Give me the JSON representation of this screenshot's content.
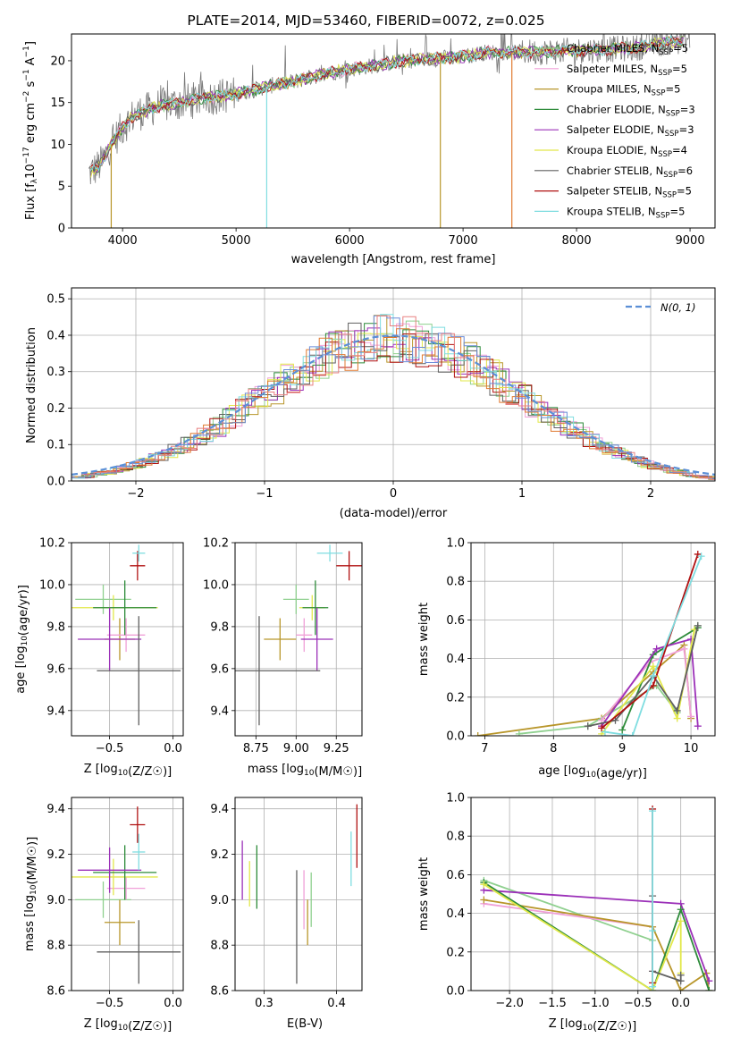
{
  "figure_title": "PLATE=2014, MJD=53460, FIBERID=0072, z=0.025",
  "colors": {
    "Chabrier MILES": "#8fd08f",
    "Salpeter MILES": "#f0a0d8",
    "Kroupa MILES": "#b8962a",
    "Chabrier ELODIE": "#2e8b3a",
    "Salpeter ELODIE": "#9b30b8",
    "Kroupa ELODIE": "#e2e84a",
    "Chabrier STELIB": "#606060",
    "Salpeter STELIB": "#b01010",
    "Kroupa STELIB": "#7fdde0",
    "model_orange": "#e07a30",
    "model_blue": "#6a8cd8",
    "model_pink": "#e88080",
    "gauss": "#5b8fd6"
  },
  "chart_data": [
    {
      "type": "line",
      "title": "PLATE=2014, MJD=53460, FIBERID=0072, z=0.025",
      "xlabel": "wavelength [Angstrom, rest frame]",
      "ylabel": "Flux [f_λ 10^-17 erg cm^-2 s^-1 A^-1]",
      "xlim": [
        3550,
        9220
      ],
      "ylim": [
        0,
        23.2
      ],
      "xticks": [
        4000,
        5000,
        6000,
        7000,
        8000,
        9000
      ],
      "yticks": [
        0,
        5,
        10,
        15,
        20
      ],
      "legend_position": "upper-right",
      "spectrum_envelope": {
        "x": [
          3700,
          3800,
          3900,
          4000,
          4100,
          4300,
          4500,
          4700,
          5000,
          5300,
          5500,
          5800,
          6000,
          6500,
          7000,
          7200,
          7500,
          8000,
          8500,
          8700,
          9000
        ],
        "y": [
          6.5,
          7.5,
          10,
          12,
          13.5,
          14.5,
          15,
          15.5,
          16,
          17,
          17.5,
          18.5,
          19,
          20,
          20.5,
          21,
          21,
          21.2,
          21.5,
          22,
          22.5
        ]
      },
      "legend": [
        {
          "name": "Chabrier MILES",
          "nssp": "5"
        },
        {
          "name": "Salpeter MILES",
          "nssp": "5"
        },
        {
          "name": "Kroupa MILES",
          "nssp": "5"
        },
        {
          "name": "Chabrier ELODIE",
          "nssp": "3"
        },
        {
          "name": "Salpeter ELODIE",
          "nssp": "3"
        },
        {
          "name": "Kroupa ELODIE",
          "nssp": "4"
        },
        {
          "name": "Chabrier STELIB",
          "nssp": "6"
        },
        {
          "name": "Salpeter STELIB",
          "nssp": "5"
        },
        {
          "name": "Kroupa STELIB",
          "nssp": "5"
        }
      ]
    },
    {
      "type": "line",
      "xlabel": "(data-model)/error",
      "ylabel": "Normed distribution",
      "xlim": [
        -2.5,
        2.5
      ],
      "ylim": [
        0,
        0.53
      ],
      "xticks": [
        -2,
        -1,
        0,
        1,
        2
      ],
      "yticks": [
        0.0,
        0.1,
        0.2,
        0.3,
        0.4,
        0.5
      ],
      "legend": "N(0, 1)",
      "legend_position": "upper-right",
      "gaussian": {
        "mean": 0,
        "sigma": 1
      }
    },
    {
      "type": "scatter",
      "xlabel": "Z [log10(Z/Z☉)]",
      "ylabel": "age [log10(age/yr)]",
      "xlim": [
        -0.8,
        0.08
      ],
      "ylim": [
        9.28,
        10.2
      ],
      "xticks": [
        -0.5,
        0.0
      ],
      "yticks": [
        9.4,
        9.6,
        9.8,
        10.0,
        10.2
      ],
      "points": [
        {
          "model": "Chabrier MILES",
          "x": -0.55,
          "y": 9.93,
          "xerr": 0.22,
          "yerr": 0.07
        },
        {
          "model": "Kroupa MILES",
          "x": -0.42,
          "y": 9.74,
          "xerr": 0.12,
          "yerr": 0.1
        },
        {
          "model": "Salpeter MILES",
          "x": -0.37,
          "y": 9.76,
          "xerr": 0.15,
          "yerr": 0.08
        },
        {
          "model": "Kroupa ELODIE",
          "x": -0.47,
          "y": 9.89,
          "xerr": 0.35,
          "yerr": 0.06
        },
        {
          "model": "Chabrier ELODIE",
          "x": -0.38,
          "y": 9.89,
          "xerr": 0.25,
          "yerr": 0.13
        },
        {
          "model": "Salpeter ELODIE",
          "x": -0.5,
          "y": 9.74,
          "xerr": 0.25,
          "yerr": 0.15
        },
        {
          "model": "Chabrier STELIB",
          "x": -0.27,
          "y": 9.59,
          "xerr": 0.33,
          "yerr": 0.26
        },
        {
          "model": "Salpeter STELIB",
          "x": -0.28,
          "y": 10.09,
          "xerr": 0.06,
          "yerr": 0.07
        },
        {
          "model": "Kroupa STELIB",
          "x": -0.27,
          "y": 10.15,
          "xerr": 0.05,
          "yerr": 0.04
        }
      ]
    },
    {
      "type": "scatter",
      "xlabel": "mass [log10(M/M☉)]",
      "ylabel": "",
      "xlim": [
        8.62,
        9.41
      ],
      "ylim": [
        9.28,
        10.2
      ],
      "xticks": [
        8.75,
        9.0,
        9.25
      ],
      "yticks": [
        9.4,
        9.6,
        9.8,
        10.0,
        10.2
      ],
      "points": [
        {
          "model": "Chabrier MILES",
          "x": 9.0,
          "y": 9.93,
          "xerr": 0.08,
          "yerr": 0.07
        },
        {
          "model": "Kroupa MILES",
          "x": 8.9,
          "y": 9.74,
          "xerr": 0.1,
          "yerr": 0.1
        },
        {
          "model": "Salpeter MILES",
          "x": 9.05,
          "y": 9.76,
          "xerr": 0.05,
          "yerr": 0.08
        },
        {
          "model": "Kroupa ELODIE",
          "x": 9.1,
          "y": 9.89,
          "xerr": 0.08,
          "yerr": 0.06
        },
        {
          "model": "Chabrier ELODIE",
          "x": 9.12,
          "y": 9.89,
          "xerr": 0.08,
          "yerr": 0.13
        },
        {
          "model": "Salpeter ELODIE",
          "x": 9.13,
          "y": 9.74,
          "xerr": 0.1,
          "yerr": 0.15
        },
        {
          "model": "Chabrier STELIB",
          "x": 8.77,
          "y": 9.59,
          "xerr": 0.38,
          "yerr": 0.26
        },
        {
          "model": "Salpeter STELIB",
          "x": 9.33,
          "y": 10.09,
          "xerr": 0.08,
          "yerr": 0.07
        },
        {
          "model": "Kroupa STELIB",
          "x": 9.21,
          "y": 10.15,
          "xerr": 0.08,
          "yerr": 0.04
        }
      ]
    },
    {
      "type": "line",
      "xlabel": "age [log10(age/yr)]",
      "ylabel": "mass weight",
      "xlim": [
        6.8,
        10.35
      ],
      "ylim": [
        0,
        1.0
      ],
      "xticks": [
        7,
        8,
        9,
        10
      ],
      "yticks": [
        0.0,
        0.2,
        0.4,
        0.6,
        0.8,
        1.0
      ],
      "series": [
        {
          "model": "Kroupa MILES",
          "x": [
            6.9,
            8.7,
            9.45,
            9.9,
            10.0
          ],
          "y": [
            0.0,
            0.09,
            0.33,
            0.47,
            0.09
          ]
        },
        {
          "model": "Chabrier MILES",
          "x": [
            7.5,
            8.5,
            9.5,
            9.8,
            10.1
          ],
          "y": [
            0.01,
            0.05,
            0.26,
            0.12,
            0.57
          ]
        },
        {
          "model": "Salpeter MILES",
          "x": [
            8.7,
            9.4,
            9.9,
            10.0
          ],
          "y": [
            0.08,
            0.38,
            0.45,
            0.1
          ]
        },
        {
          "model": "Chabrier ELODIE",
          "x": [
            9.0,
            9.45,
            10.1
          ],
          "y": [
            0.03,
            0.42,
            0.56
          ]
        },
        {
          "model": "Salpeter ELODIE",
          "x": [
            8.7,
            9.5,
            10.0,
            10.1
          ],
          "y": [
            0.05,
            0.45,
            0.5,
            0.05
          ]
        },
        {
          "model": "Kroupa ELODIE",
          "x": [
            8.7,
            9.45,
            9.8,
            10.05
          ],
          "y": [
            0.01,
            0.36,
            0.09,
            0.55
          ]
        },
        {
          "model": "Chabrier STELIB",
          "x": [
            8.5,
            8.9,
            9.45,
            9.8,
            10.1
          ],
          "y": [
            0.05,
            0.08,
            0.31,
            0.13,
            0.57
          ]
        },
        {
          "model": "Salpeter STELIB",
          "x": [
            8.7,
            9.45,
            10.1
          ],
          "y": [
            0.04,
            0.26,
            0.94
          ]
        },
        {
          "model": "Kroupa STELIB",
          "x": [
            8.75,
            9.15,
            9.45,
            10.15
          ],
          "y": [
            0.02,
            0.0,
            0.31,
            0.93
          ]
        }
      ]
    },
    {
      "type": "scatter",
      "xlabel": "Z [log10(Z/Z☉)]",
      "ylabel": "mass [log10(M/M☉)]",
      "xlim": [
        -0.8,
        0.08
      ],
      "ylim": [
        8.6,
        9.45
      ],
      "xticks": [
        -0.5,
        0.0
      ],
      "yticks": [
        8.6,
        8.8,
        9.0,
        9.2,
        9.4
      ],
      "points": [
        {
          "model": "Chabrier MILES",
          "x": -0.55,
          "y": 9.0,
          "xerr": 0.22,
          "yerr": 0.08
        },
        {
          "model": "Kroupa MILES",
          "x": -0.42,
          "y": 8.9,
          "xerr": 0.12,
          "yerr": 0.1
        },
        {
          "model": "Salpeter MILES",
          "x": -0.37,
          "y": 9.05,
          "xerr": 0.15,
          "yerr": 0.05
        },
        {
          "model": "Kroupa ELODIE",
          "x": -0.47,
          "y": 9.1,
          "xerr": 0.35,
          "yerr": 0.08
        },
        {
          "model": "Chabrier ELODIE",
          "x": -0.38,
          "y": 9.12,
          "xerr": 0.25,
          "yerr": 0.12
        },
        {
          "model": "Salpeter ELODIE",
          "x": -0.5,
          "y": 9.13,
          "xerr": 0.25,
          "yerr": 0.1
        },
        {
          "model": "Chabrier STELIB",
          "x": -0.27,
          "y": 8.77,
          "xerr": 0.33,
          "yerr": 0.14
        },
        {
          "model": "Salpeter STELIB",
          "x": -0.28,
          "y": 9.33,
          "xerr": 0.06,
          "yerr": 0.08
        },
        {
          "model": "Kroupa STELIB",
          "x": -0.27,
          "y": 9.21,
          "xerr": 0.05,
          "yerr": 0.08
        }
      ]
    },
    {
      "type": "scatter",
      "xlabel": "E(B-V)",
      "ylabel": "",
      "xlim": [
        0.26,
        0.435
      ],
      "ylim": [
        8.6,
        9.45
      ],
      "xticks": [
        0.3,
        0.4
      ],
      "yticks": [
        8.6,
        8.8,
        9.0,
        9.2,
        9.4
      ],
      "points": [
        {
          "model": "Salpeter ELODIE",
          "x": 0.27,
          "y": 9.13,
          "yerr": 0.13
        },
        {
          "model": "Kroupa ELODIE",
          "x": 0.28,
          "y": 9.07,
          "yerr": 0.1
        },
        {
          "model": "Chabrier ELODIE",
          "x": 0.29,
          "y": 9.1,
          "yerr": 0.14
        },
        {
          "model": "Chabrier STELIB",
          "x": 0.345,
          "y": 8.88,
          "yerr": 0.25
        },
        {
          "model": "Salpeter MILES",
          "x": 0.355,
          "y": 9.0,
          "yerr": 0.13
        },
        {
          "model": "Kroupa MILES",
          "x": 0.36,
          "y": 8.9,
          "yerr": 0.1
        },
        {
          "model": "Chabrier MILES",
          "x": 0.365,
          "y": 9.0,
          "yerr": 0.12
        },
        {
          "model": "Kroupa STELIB",
          "x": 0.42,
          "y": 9.18,
          "yerr": 0.12
        },
        {
          "model": "Salpeter STELIB",
          "x": 0.428,
          "y": 9.28,
          "yerr": 0.14
        }
      ]
    },
    {
      "type": "line",
      "xlabel": "Z [log10(Z/Z☉)]",
      "ylabel": "mass weight",
      "xlim": [
        -2.45,
        0.4
      ],
      "ylim": [
        0,
        1.0
      ],
      "xticks": [
        -2.0,
        -1.5,
        -1.0,
        -0.5,
        0.0
      ],
      "yticks": [
        0.0,
        0.2,
        0.4,
        0.6,
        0.8,
        1.0
      ],
      "series": [
        {
          "model": "Chabrier MILES",
          "x": [
            -2.3,
            -0.33
          ],
          "y": [
            0.57,
            0.26
          ]
        },
        {
          "model": "Salpeter MILES",
          "x": [
            -2.3,
            -0.33,
            -0.33
          ],
          "y": [
            0.45,
            0.33,
            0.1
          ]
        },
        {
          "model": "Kroupa MILES",
          "x": [
            -2.3,
            -0.33,
            0.0,
            0.3,
            0.33
          ],
          "y": [
            0.47,
            0.33,
            0.0,
            0.09,
            0.0
          ]
        },
        {
          "model": "Salpeter ELODIE",
          "x": [
            -2.3,
            0.0,
            0.33
          ],
          "y": [
            0.52,
            0.45,
            0.05
          ]
        },
        {
          "model": "Chabrier ELODIE",
          "x": [
            -2.3,
            -0.33,
            0.0,
            0.33
          ],
          "y": [
            0.56,
            0.0,
            0.42,
            0.0
          ]
        },
        {
          "model": "Kroupa ELODIE",
          "x": [
            -2.3,
            -0.33,
            0.0,
            0.0
          ],
          "y": [
            0.55,
            0.0,
            0.36,
            0.09
          ]
        },
        {
          "model": "Chabrier STELIB",
          "x": [
            -0.33,
            -0.33,
            0.0,
            0.0
          ],
          "y": [
            0.49,
            0.1,
            0.05,
            0.08
          ]
        },
        {
          "model": "Salpeter STELIB",
          "x": [
            -0.33,
            -0.33
          ],
          "y": [
            0.94,
            0.04
          ]
        },
        {
          "model": "Kroupa STELIB",
          "x": [
            -0.33,
            -0.33,
            -0.33
          ],
          "y": [
            0.93,
            0.02,
            0.31
          ]
        }
      ]
    }
  ]
}
